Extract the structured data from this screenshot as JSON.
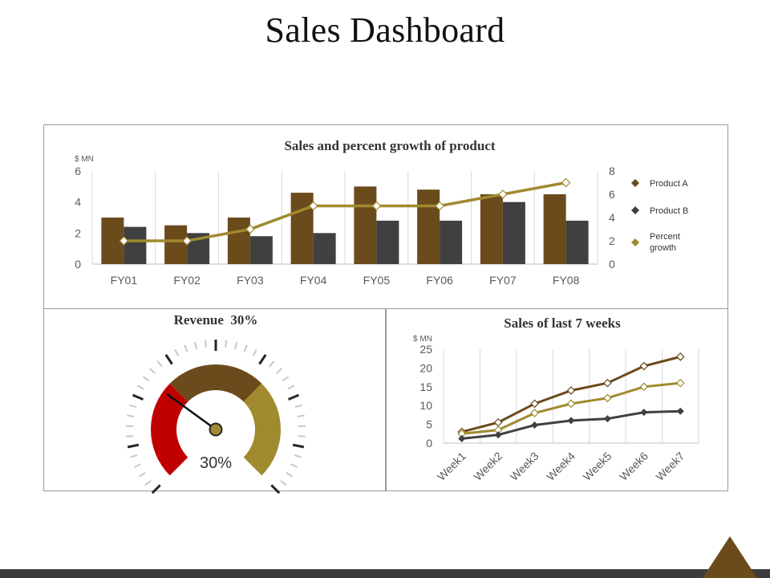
{
  "page": {
    "title": "Sales Dashboard"
  },
  "colors": {
    "product_a": "#6b4a1c",
    "product_b": "#404040",
    "percent_growth": "#a08a2e",
    "gauge_red": "#c00000",
    "gauge_brown": "#6b4a1c",
    "gauge_gold": "#a08a2e",
    "grid": "#d9d9d9",
    "text": "#595959"
  },
  "chart_data": [
    {
      "type": "bar",
      "title": "Sales and percent growth of product",
      "unit_label": "$ MN",
      "categories": [
        "FY01",
        "FY02",
        "FY03",
        "FY04",
        "FY05",
        "FY06",
        "FY07",
        "FY08"
      ],
      "series": [
        {
          "name": "Product A",
          "values": [
            3,
            2.5,
            3,
            4.6,
            5,
            4.8,
            4.5,
            4.5
          ],
          "axis": "left"
        },
        {
          "name": "Product B",
          "values": [
            2.4,
            2,
            1.8,
            2,
            2.8,
            2.8,
            4,
            2.8
          ],
          "axis": "left"
        },
        {
          "name": "Percent growth",
          "values": [
            2,
            2,
            3,
            5,
            5,
            5,
            6,
            7
          ],
          "axis": "right",
          "render": "line"
        }
      ],
      "y_left": {
        "ticks": [
          0,
          2,
          4,
          6
        ],
        "lim": [
          0,
          6
        ]
      },
      "y_right": {
        "ticks": [
          0,
          2,
          4,
          6,
          8
        ],
        "lim": [
          0,
          8
        ]
      },
      "legend": {
        "position": "right",
        "labels": [
          "Product A",
          "Product B",
          "Percent growth"
        ]
      },
      "grid": "vertical"
    },
    {
      "type": "gauge",
      "title": "Revenue  30%",
      "value_label": "30%",
      "value": 0.3
    },
    {
      "type": "line",
      "title": "Sales of last 7 weeks",
      "unit_label": "$ MN",
      "categories": [
        "Week1",
        "Week2",
        "Week3",
        "Week4",
        "Week5",
        "Week6",
        "Week7"
      ],
      "series": [
        {
          "values": [
            3,
            5.5,
            10.5,
            14,
            16,
            20.5,
            23
          ]
        },
        {
          "values": [
            2.5,
            3.5,
            8,
            10.5,
            12,
            15,
            16
          ]
        },
        {
          "values": [
            1.2,
            2.2,
            4.8,
            6,
            6.5,
            8.2,
            8.5
          ]
        }
      ],
      "y": {
        "ticks": [
          0,
          5,
          10,
          15,
          20,
          25
        ],
        "lim": [
          0,
          25
        ]
      },
      "grid": "vertical"
    }
  ]
}
